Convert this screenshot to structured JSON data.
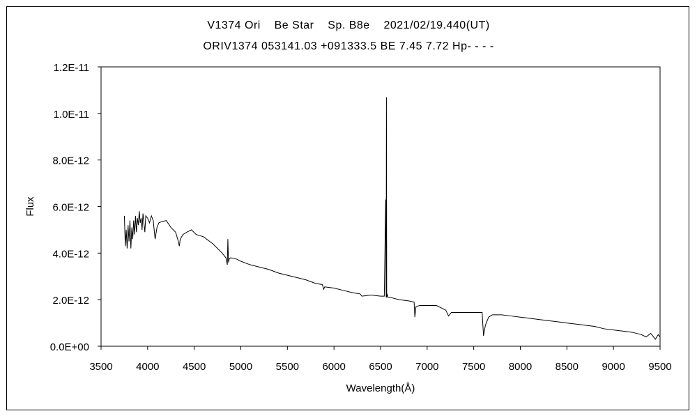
{
  "chart_data": {
    "type": "line",
    "title": "V1374 Ori    Be Star    Sp. B8e    2021/02/19.440(UT)",
    "subtitle": "ORIV1374 053141.03 +091333.5 BE 7.45 7.72 Hp- - - -",
    "xlabel": "Wavelength(Å)",
    "ylabel": "Flux",
    "xlim": [
      3500,
      9500
    ],
    "ylim": [
      0,
      1.2e-11
    ],
    "xticks": [
      3500,
      4000,
      4500,
      5000,
      5500,
      6000,
      6500,
      7000,
      7500,
      8000,
      8500,
      9000,
      9500
    ],
    "xtick_labels": [
      "3500",
      "4000",
      "4500",
      "5000",
      "5500",
      "6000",
      "6500",
      "7000",
      "7500",
      "8000",
      "8500",
      "9000",
      "9500"
    ],
    "yticks": [
      0,
      2e-12,
      4e-12,
      6e-12,
      8e-12,
      1e-11,
      1.2e-11
    ],
    "ytick_labels": [
      "0.0E+00",
      "2.0E-12",
      "4.0E-12",
      "6.0E-12",
      "8.0E-12",
      "1.0E-11",
      "1.2E-11"
    ],
    "grid": false,
    "legend": "none",
    "series": [
      {
        "x": [
          3750,
          3760,
          3770,
          3780,
          3790,
          3800,
          3810,
          3820,
          3830,
          3840,
          3850,
          3860,
          3870,
          3880,
          3890,
          3900,
          3910,
          3920,
          3930,
          3940,
          3950,
          3960,
          3970,
          3980,
          4000,
          4020,
          4040,
          4060,
          4080,
          4100,
          4120,
          4150,
          4200,
          4250,
          4300,
          4330,
          4340,
          4350,
          4380,
          4420,
          4470,
          4520,
          4600,
          4700,
          4800,
          4840,
          4855,
          4861,
          4868,
          4875,
          4890,
          4950,
          5000,
          5100,
          5200,
          5300,
          5400,
          5500,
          5600,
          5700,
          5800,
          5875,
          5890,
          5900,
          6000,
          6100,
          6200,
          6280,
          6300,
          6400,
          6500,
          6540,
          6555,
          6560,
          6563,
          6566,
          6570,
          6580,
          6600,
          6700,
          6800,
          6860,
          6868,
          6880,
          6920,
          7000,
          7100,
          7200,
          7230,
          7260,
          7300,
          7400,
          7500,
          7550,
          7590,
          7605,
          7625,
          7660,
          7700,
          7800,
          7900,
          8000,
          8100,
          8200,
          8300,
          8400,
          8500,
          8600,
          8700,
          8800,
          8900,
          9000,
          9100,
          9200,
          9300,
          9350,
          9400,
          9450,
          9480,
          9500
        ],
        "y": [
          5.6e-12,
          4.3e-12,
          5e-12,
          4.2e-12,
          5.2e-12,
          4.5e-12,
          5.4e-12,
          4.2e-12,
          5.1e-12,
          4.6e-12,
          5.4e-12,
          4.8e-12,
          5.6e-12,
          4.9e-12,
          5.5e-12,
          5.2e-12,
          5.8e-12,
          5.3e-12,
          5.5e-12,
          5e-12,
          5.7e-12,
          5.3e-12,
          4.9e-12,
          5.6e-12,
          5.5e-12,
          5.3e-12,
          5.6e-12,
          5.4e-12,
          4.6e-12,
          5.1e-12,
          5.3e-12,
          5.35e-12,
          5.4e-12,
          5.1e-12,
          4.9e-12,
          4.5e-12,
          4.3e-12,
          4.6e-12,
          4.8e-12,
          4.9e-12,
          5e-12,
          4.8e-12,
          4.7e-12,
          4.4e-12,
          4e-12,
          3.8e-12,
          3.5e-12,
          4.6e-12,
          3.6e-12,
          3.75e-12,
          3.8e-12,
          3.75e-12,
          3.65e-12,
          3.5e-12,
          3.4e-12,
          3.3e-12,
          3.15e-12,
          3.05e-12,
          2.95e-12,
          2.85e-12,
          2.7e-12,
          2.65e-12,
          2.45e-12,
          2.55e-12,
          2.5e-12,
          2.4e-12,
          2.3e-12,
          2.25e-12,
          2.15e-12,
          2.2e-12,
          2.15e-12,
          2.15e-12,
          6.3e-12,
          2.1e-12,
          1.07e-11,
          2.1e-12,
          2.25e-12,
          2.1e-12,
          2.1e-12,
          2e-12,
          1.95e-12,
          1.9e-12,
          1.25e-12,
          1.7e-12,
          1.75e-12,
          1.75e-12,
          1.75e-12,
          1.55e-12,
          1.3e-12,
          1.45e-12,
          1.45e-12,
          1.45e-12,
          1.45e-12,
          1.45e-12,
          1.45e-12,
          4.5e-13,
          9e-13,
          1.25e-12,
          1.35e-12,
          1.35e-12,
          1.3e-12,
          1.25e-12,
          1.2e-12,
          1.15e-12,
          1.1e-12,
          1.05e-12,
          1e-12,
          9.5e-13,
          9e-13,
          8.5e-13,
          7.5e-13,
          7e-13,
          6.5e-13,
          6e-13,
          5e-13,
          4e-13,
          5.5e-13,
          3e-13,
          5e-13,
          4e-13
        ]
      }
    ]
  }
}
